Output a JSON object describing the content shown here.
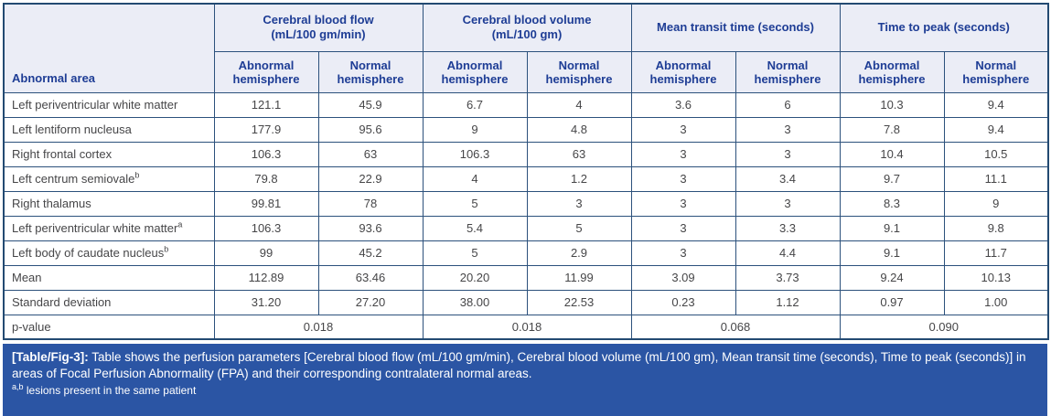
{
  "table": {
    "header": {
      "area_label": "Abnormal area",
      "groups": [
        {
          "line1": "Cerebral blood flow",
          "line2": "(mL/100 gm/min)"
        },
        {
          "line1": "Cerebral blood volume",
          "line2": "(mL/100 gm)"
        },
        {
          "line1": "Mean transit time (seconds)",
          "line2": ""
        },
        {
          "line1": "Time to peak (seconds)",
          "line2": ""
        }
      ],
      "sub_abnormal": "Abnormal hemisphere",
      "sub_normal": "Normal hemisphere"
    },
    "rows": [
      {
        "area": "Left periventricular white matter",
        "sup": "",
        "values": [
          "121.1",
          "45.9",
          "6.7",
          "4",
          "3.6",
          "6",
          "10.3",
          "9.4"
        ]
      },
      {
        "area": "Left lentiform nucleusa",
        "sup": "",
        "values": [
          "177.9",
          "95.6",
          "9",
          "4.8",
          "3",
          "3",
          "7.8",
          "9.4"
        ]
      },
      {
        "area": "Right frontal cortex",
        "sup": "",
        "values": [
          "106.3",
          "63",
          "106.3",
          "63",
          "3",
          "3",
          "10.4",
          "10.5"
        ]
      },
      {
        "area": "Left centrum semiovale",
        "sup": "b",
        "values": [
          "79.8",
          "22.9",
          "4",
          "1.2",
          "3",
          "3.4",
          "9.7",
          "11.1"
        ]
      },
      {
        "area": "Right thalamus",
        "sup": "",
        "values": [
          "99.81",
          "78",
          "5",
          "3",
          "3",
          "3",
          "8.3",
          "9"
        ]
      },
      {
        "area": "Left periventricular white matter",
        "sup": "a",
        "values": [
          "106.3",
          "93.6",
          "5.4",
          "5",
          "3",
          "3.3",
          "9.1",
          "9.8"
        ]
      },
      {
        "area": "Left body of caudate nucleus",
        "sup": "b",
        "values": [
          "99",
          "45.2",
          "5",
          "2.9",
          "3",
          "4.4",
          "9.1",
          "11.7"
        ]
      },
      {
        "area": "Mean",
        "sup": "",
        "values": [
          "112.89",
          "63.46",
          "20.20",
          "11.99",
          "3.09",
          "3.73",
          "9.24",
          "10.13"
        ]
      },
      {
        "area": "Standard deviation",
        "sup": "",
        "values": [
          "31.20",
          "27.20",
          "38.00",
          "22.53",
          "0.23",
          "1.12",
          "0.97",
          "1.00"
        ]
      }
    ],
    "pvalue": {
      "label": "p-value",
      "values": [
        "0.018",
        "0.018",
        "0.068",
        "0.090"
      ]
    }
  },
  "caption": {
    "label": "[Table/Fig-3]:",
    "text": "Table shows the perfusion parameters [Cerebral blood flow (mL/100 gm/min), Cerebral blood volume (mL/100 gm), Mean transit time (seconds), Time to peak (seconds)] in areas of Focal Perfusion Abnormality (FPA) and their corresponding contralateral normal areas."
  },
  "footnote": {
    "sup": "a,b",
    "text": "lesions present in the same patient"
  },
  "colors": {
    "header_bg": "#ebedf6",
    "header_text": "#1e3d95",
    "border": "#2c517c",
    "outer_border": "#234a72",
    "caption_bg": "#2b55a4",
    "caption_text": "#ffffff",
    "body_text": "#464648"
  }
}
